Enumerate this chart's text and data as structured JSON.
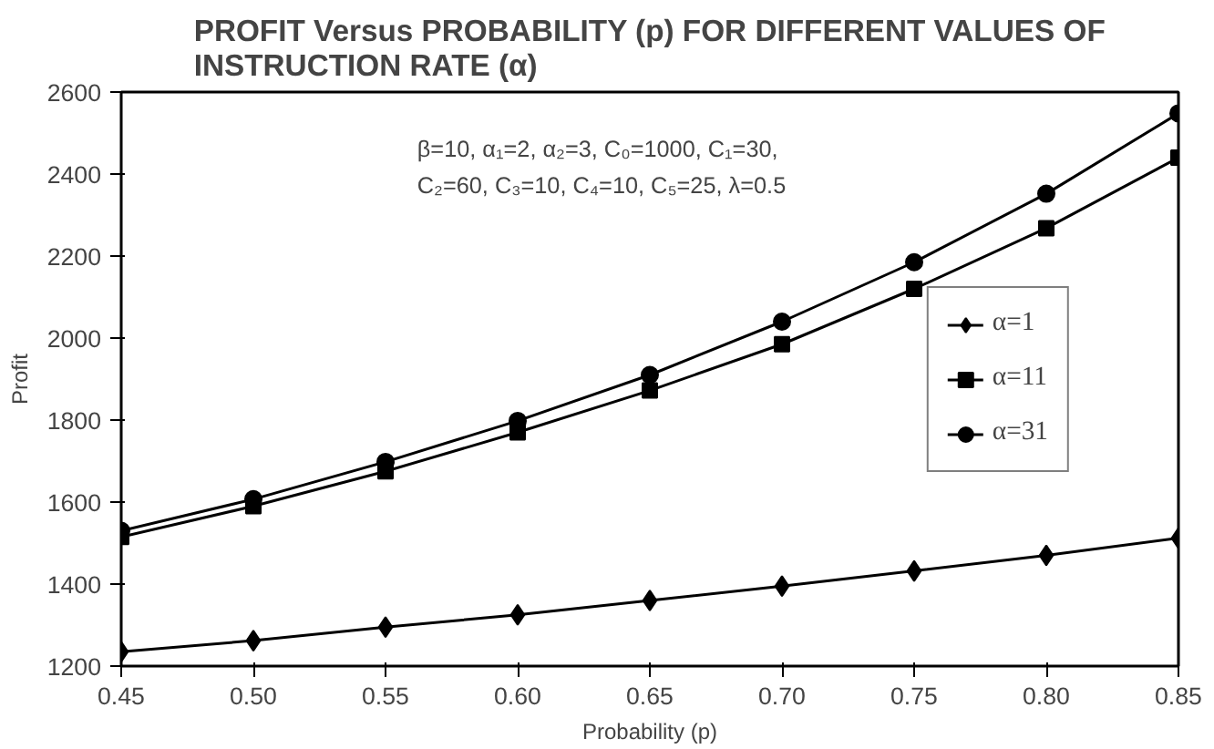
{
  "chart_data": {
    "type": "line",
    "title": "PROFIT Versus PROBABILITY (p) FOR DIFFERENT VALUES OF\nINSTRUCTION RATE (α)",
    "xlabel": "Probability (p)",
    "ylabel": "Profit",
    "x": [
      0.45,
      0.5,
      0.55,
      0.6,
      0.65,
      0.7,
      0.75,
      0.8,
      0.85
    ],
    "series": [
      {
        "name": "α=1",
        "color": "#000000",
        "marker": "diamond",
        "values": [
          1235,
          1262,
          1295,
          1325,
          1360,
          1395,
          1432,
          1470,
          1512
        ]
      },
      {
        "name": "α=11",
        "color": "#000000",
        "marker": "square",
        "values": [
          1515,
          1590,
          1675,
          1770,
          1872,
          1985,
          2120,
          2268,
          2440
        ]
      },
      {
        "name": "α=31",
        "color": "#000000",
        "marker": "circle",
        "values": [
          1530,
          1607,
          1698,
          1798,
          1910,
          2040,
          2185,
          2352,
          2548
        ]
      }
    ],
    "xlim": [
      0.45,
      0.85
    ],
    "xticks": [
      {
        "value": 0.45,
        "label": "0.45"
      },
      {
        "value": 0.5,
        "label": "0.50"
      },
      {
        "value": 0.55,
        "label": "0.55"
      },
      {
        "value": 0.6,
        "label": "0.60"
      },
      {
        "value": 0.65,
        "label": "0.65"
      },
      {
        "value": 0.7,
        "label": "0.70"
      },
      {
        "value": 0.75,
        "label": "0.75"
      },
      {
        "value": 0.8,
        "label": "0.80"
      },
      {
        "value": 0.85,
        "label": "0.85"
      }
    ],
    "ylim": [
      1200,
      2600
    ],
    "yticks": [
      1200,
      1400,
      1600,
      1800,
      2000,
      2200,
      2400,
      2600
    ],
    "annotations": [
      "β=10, α₁=2, α₂=3, C₀=1000, C₁=30,",
      "C₂=60, C₃=10,  C₄=10, C₅=25, λ=0.5"
    ],
    "grid": false,
    "legend": "right",
    "line_style": "solid"
  }
}
